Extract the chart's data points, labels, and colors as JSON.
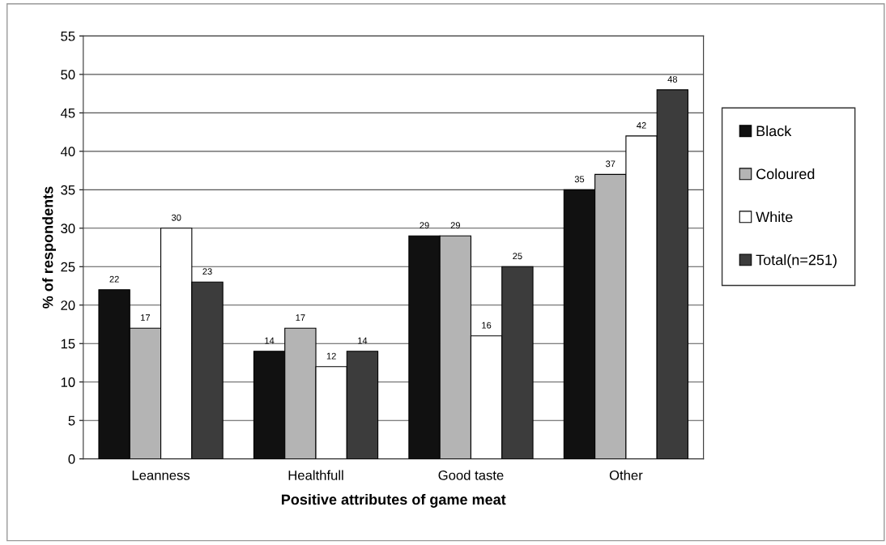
{
  "chart_data": {
    "type": "bar",
    "xlabel": "Positive attributes of game meat",
    "ylabel": "% of respondents",
    "categories": [
      "Leanness",
      "Healthfull",
      "Good taste",
      "Other"
    ],
    "series": [
      {
        "name": "Black",
        "color": "#111111",
        "values": [
          22,
          14,
          29,
          35
        ]
      },
      {
        "name": "Coloured",
        "color": "#b4b4b4",
        "values": [
          17,
          17,
          29,
          37
        ]
      },
      {
        "name": "White",
        "color": "#ffffff",
        "values": [
          30,
          12,
          16,
          42
        ]
      },
      {
        "name": "Total(n=251)",
        "color": "#3c3c3c",
        "values": [
          23,
          14,
          25,
          48
        ]
      }
    ],
    "ylim": [
      0,
      55
    ],
    "yticks": [
      0,
      5,
      10,
      15,
      20,
      25,
      30,
      35,
      40,
      45,
      50,
      55
    ],
    "grid": "y",
    "legend": "right",
    "data_labels": true
  }
}
